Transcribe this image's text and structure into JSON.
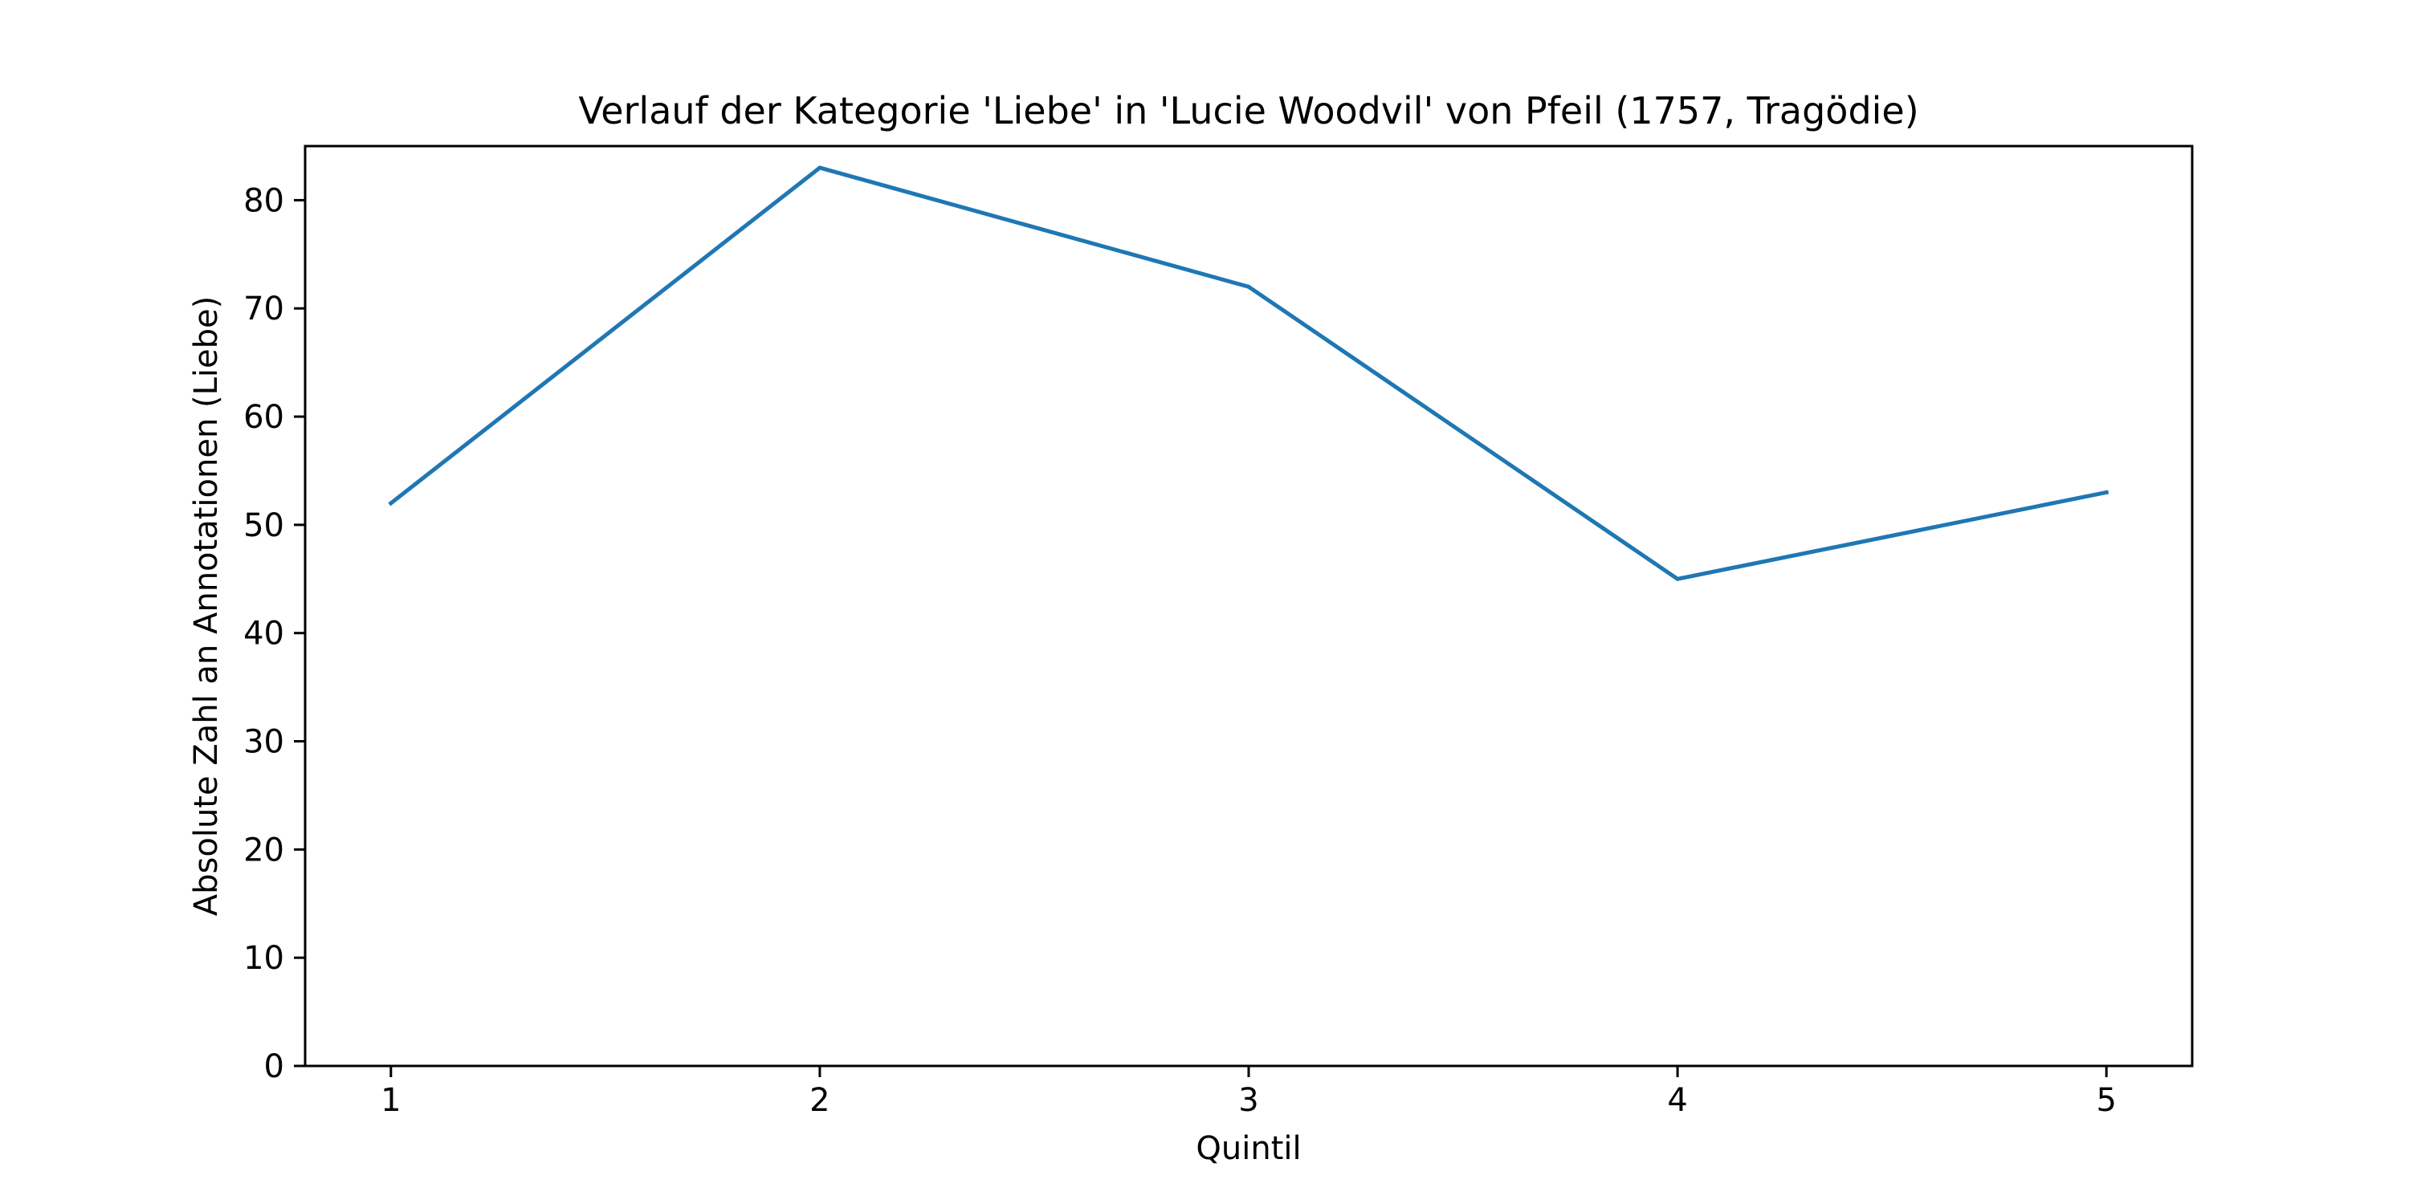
{
  "chart_data": {
    "type": "line",
    "title": "Verlauf der Kategorie 'Liebe' in 'Lucie Woodvil' von Pfeil (1757, Tragödie)",
    "xlabel": "Quintil",
    "ylabel": "Absolute Zahl an Annotationen (Liebe)",
    "x": [
      1,
      2,
      3,
      4,
      5
    ],
    "series": [
      {
        "values": [
          52,
          83,
          72,
          45,
          53
        ]
      }
    ],
    "xticks": [
      "1",
      "2",
      "3",
      "4",
      "5"
    ],
    "yticks": [
      "0",
      "10",
      "20",
      "30",
      "40",
      "50",
      "60",
      "70",
      "80"
    ],
    "xlim": [
      0.8,
      5.2
    ],
    "ylim": [
      0,
      85
    ],
    "grid": false,
    "legend": "none",
    "line_color": "#1f77b4"
  }
}
